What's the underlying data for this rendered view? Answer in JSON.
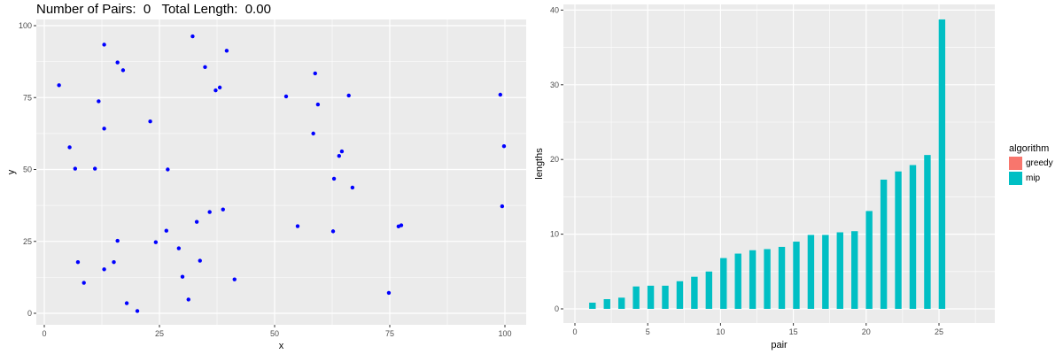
{
  "header": {
    "pairs_label": "Number of Pairs:",
    "pairs_value": "0",
    "length_label": "Total Length:",
    "length_value": "0.00"
  },
  "colors": {
    "panel_bg": "#EBEBEB",
    "grid": "#FFFFFF",
    "point": "#0000FF",
    "greedy": "#F8766D",
    "mip": "#00BFC4"
  },
  "chart_data": [
    {
      "type": "scatter",
      "title": "Number of Pairs:  0   Total Length:  0.00",
      "xlabel": "x",
      "ylabel": "y",
      "xlim": [
        -1,
        104
      ],
      "ylim": [
        -4,
        101
      ],
      "xticks": [
        0,
        25,
        50,
        75,
        100
      ],
      "yticks": [
        0,
        25,
        50,
        75,
        100
      ],
      "grid": true,
      "points": [
        [
          3.2,
          79.3
        ],
        [
          13.0,
          93.4
        ],
        [
          15.9,
          87.2
        ],
        [
          17.1,
          84.5
        ],
        [
          11.8,
          73.7
        ],
        [
          13.0,
          64.2
        ],
        [
          5.5,
          57.7
        ],
        [
          6.7,
          50.3
        ],
        [
          11.0,
          50.3
        ],
        [
          23.0,
          66.7
        ],
        [
          26.8,
          50.0
        ],
        [
          32.2,
          96.3
        ],
        [
          34.9,
          85.6
        ],
        [
          37.2,
          77.5
        ],
        [
          38.1,
          78.5
        ],
        [
          39.6,
          91.3
        ],
        [
          52.5,
          75.4
        ],
        [
          58.8,
          83.4
        ],
        [
          59.4,
          72.6
        ],
        [
          66.1,
          75.7
        ],
        [
          58.4,
          62.5
        ],
        [
          64.6,
          56.3
        ],
        [
          64.0,
          54.7
        ],
        [
          62.9,
          46.8
        ],
        [
          66.9,
          43.7
        ],
        [
          55.0,
          30.3
        ],
        [
          62.7,
          28.5
        ],
        [
          38.8,
          36.1
        ],
        [
          35.9,
          35.2
        ],
        [
          33.1,
          31.8
        ],
        [
          26.5,
          28.7
        ],
        [
          24.2,
          24.7
        ],
        [
          29.2,
          22.6
        ],
        [
          33.8,
          18.3
        ],
        [
          30.0,
          12.7
        ],
        [
          41.3,
          11.8
        ],
        [
          31.3,
          4.8
        ],
        [
          17.9,
          3.5
        ],
        [
          20.2,
          0.8
        ],
        [
          15.9,
          25.2
        ],
        [
          7.3,
          17.8
        ],
        [
          15.1,
          17.8
        ],
        [
          13.0,
          15.3
        ],
        [
          8.6,
          10.6
        ],
        [
          99.0,
          76.0
        ],
        [
          99.8,
          58.1
        ],
        [
          99.4,
          37.2
        ],
        [
          76.9,
          30.2
        ],
        [
          77.5,
          30.6
        ],
        [
          74.8,
          7.1
        ]
      ]
    },
    {
      "type": "bar",
      "title": "",
      "xlabel": "pair",
      "ylabel": "lengths",
      "xlim": [
        -0.8,
        28.5
      ],
      "ylim": [
        -1.9,
        40.8
      ],
      "xticks": [
        0,
        5,
        10,
        15,
        20,
        25
      ],
      "yticks": [
        0,
        10,
        20,
        30,
        40
      ],
      "grid": true,
      "legend": {
        "title": "algorithm",
        "position": "right",
        "entries": [
          "greedy",
          "mip"
        ]
      },
      "categories": [
        1,
        2,
        3,
        4,
        5,
        6,
        7,
        8,
        9,
        10,
        11,
        12,
        13,
        14,
        15,
        16,
        17,
        18,
        19,
        20,
        21,
        22,
        23,
        24,
        25
      ],
      "series": [
        {
          "name": "greedy",
          "values": []
        },
        {
          "name": "mip",
          "values": [
            0.83,
            1.3,
            1.5,
            3.0,
            3.1,
            3.1,
            3.7,
            4.3,
            5.0,
            6.8,
            7.4,
            7.85,
            8.0,
            8.3,
            9.0,
            9.9,
            9.9,
            10.25,
            10.4,
            13.1,
            17.3,
            18.4,
            19.25,
            20.6,
            38.75
          ]
        }
      ]
    }
  ]
}
